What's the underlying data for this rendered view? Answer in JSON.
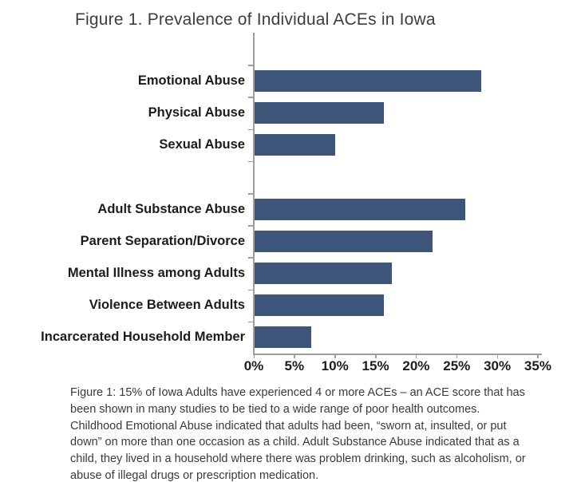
{
  "caption": {
    "text": "Figure 1: 15% of Iowa Adults have experienced 4 or more ACEs – an ACE score that has been shown in many studies to be tied to a wide range of poor health outcomes. Childhood Emotional Abuse indicated that adults had been, “sworn at, insulted, or put down” on more than one occasion as a child. Adult Substance Abuse indicated that as a child, they lived in a household where there was problem drinking, such as alcoholism, or abuse of illegal drugs or prescription medication."
  },
  "chart_data": {
    "type": "bar",
    "orientation": "horizontal",
    "title": "Figure 1. Prevalence of Individual ACEs in Iowa",
    "categories": [
      "Emotional Abuse",
      "Physical Abuse",
      "Sexual Abuse",
      "Adult Substance Abuse",
      "Parent Separation/Divorce",
      "Mental Illness among Adults",
      "Violence Between Adults",
      "Incarcerated Household Member"
    ],
    "values": [
      28,
      16,
      10,
      26,
      22,
      17,
      16,
      7
    ],
    "unit": "%",
    "group_break_after_index": 2,
    "x_tick_labels": [
      "0%",
      "5%",
      "10%",
      "15%",
      "20%",
      "25%",
      "30%",
      "35%"
    ],
    "xlim": [
      0,
      35
    ],
    "grid": false,
    "legend": false,
    "bar_color": "#3c5578",
    "axis_color": "#9e9e9e"
  }
}
